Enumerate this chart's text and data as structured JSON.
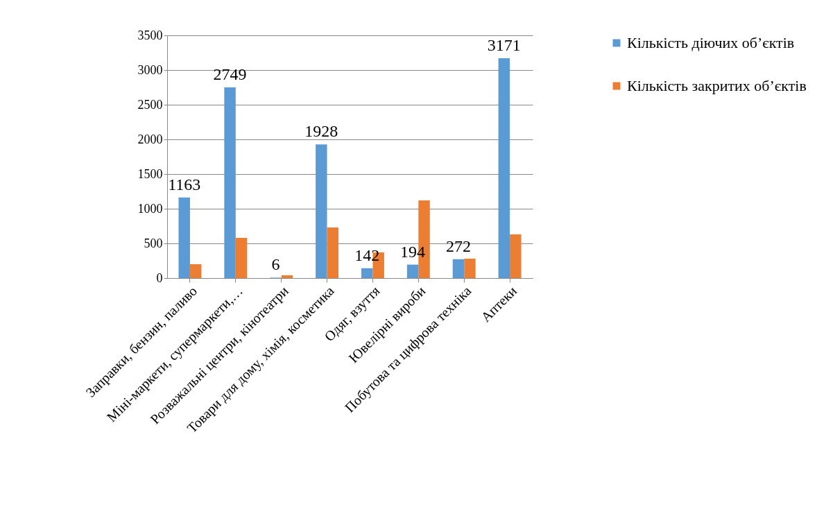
{
  "chart_data": {
    "type": "bar",
    "categories": [
      "Заправки, бензин, паливо",
      "Міні-маркети, супермаркети,…",
      "Розважальні центри, кінотеатри",
      "Товари для дому, хімія, косметика",
      "Одяг, взуття",
      "Ювелірні вироби",
      "Побутова та цифрова техніка",
      "Аптеки"
    ],
    "series": [
      {
        "name": "Кількість діючих об’єктів",
        "color": "#5b9bd5",
        "values": [
          1163,
          2749,
          6,
          1928,
          142,
          194,
          272,
          3171
        ],
        "value_labels": [
          "1163",
          "2749",
          "6",
          "1928",
          "142",
          "194",
          "272",
          "3171"
        ]
      },
      {
        "name": "Кількість закритих об’єктів",
        "color": "#ed7d31",
        "values": [
          200,
          580,
          40,
          730,
          370,
          1120,
          280,
          630
        ]
      }
    ],
    "ylim": [
      0,
      3500
    ],
    "yticks": [
      0,
      500,
      1000,
      1500,
      2000,
      2500,
      3000,
      3500
    ],
    "grid": "y",
    "legend": "right"
  }
}
